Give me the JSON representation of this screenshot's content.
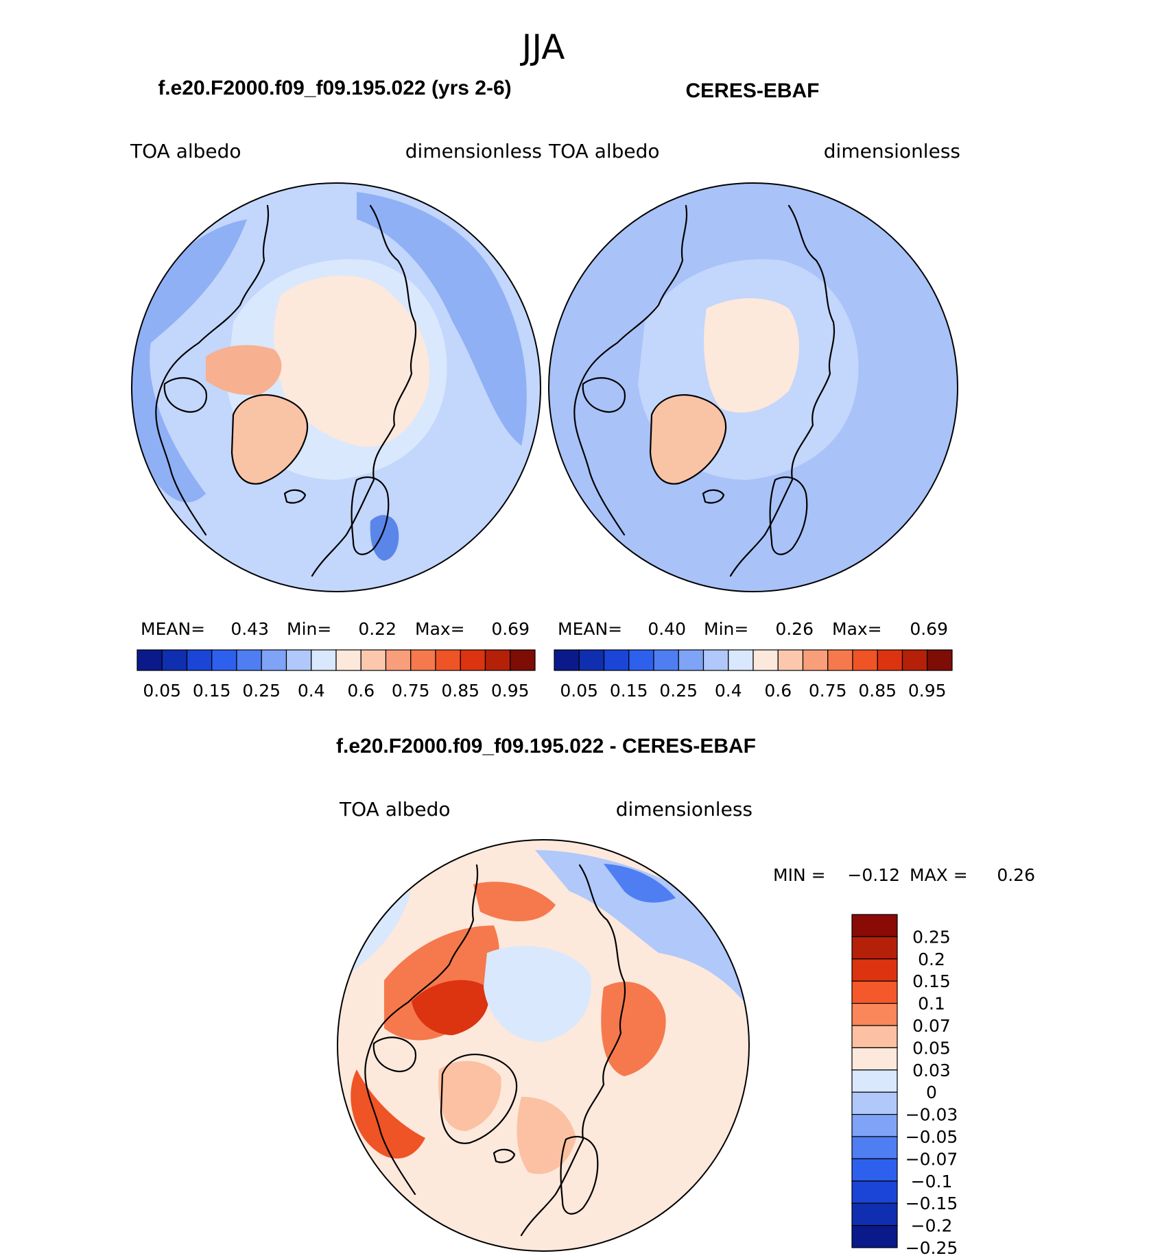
{
  "title": "JJA",
  "panels": [
    {
      "case_title": "f.e20.F2000.f09_f09.195.022 (yrs 2-6)",
      "left_label": "TOA  albedo",
      "right_label": "dimensionless",
      "stats": {
        "mean_label": "MEAN=",
        "mean": "0.43",
        "min_label": "Min=",
        "min": "0.22",
        "max_label": "Max=",
        "max": "0.69"
      },
      "base_color": "#c3d6fb",
      "field_colors": {
        "ocean_low": "#8fb0f5",
        "ice": "#fde8dc",
        "greenland": "#f9c3a6",
        "archipelago": "#f7b090",
        "baltic": "#5a86ea"
      }
    },
    {
      "case_title": "CERES-EBAF",
      "left_label": "TOA  albedo",
      "right_label": "dimensionless",
      "stats": {
        "mean_label": "MEAN=",
        "mean": "0.40",
        "min_label": "Min=",
        "min": "0.26",
        "max_label": "Max=",
        "max": "0.69"
      },
      "base_color": "#a9c2f8",
      "field_colors": {
        "ocean_low": "#8fb0f5",
        "ice": "#fde8dc",
        "greenland": "#f9c3a6",
        "archipelago": "#d9e8fc",
        "baltic": "#8fb0f5"
      }
    }
  ],
  "top_colorbar": {
    "colors": [
      "#0a1a8a",
      "#0f2fb0",
      "#1a45d6",
      "#2e60ee",
      "#4f7ef3",
      "#7fa3f6",
      "#b0c8fa",
      "#d9e8fc",
      "#fde8dc",
      "#fbc8ae",
      "#f99e7a",
      "#f5794c",
      "#ef5426",
      "#dc3311",
      "#b52009",
      "#7d0d05"
    ],
    "tick_labels": [
      "0.05",
      "0.15",
      "0.25",
      "0.4",
      "0.6",
      "0.75",
      "0.85",
      "0.95"
    ]
  },
  "diff_panel": {
    "title": "f.e20.F2000.f09_f09.195.022 - CERES-EBAF",
    "left_label": "TOA  albedo",
    "right_label": "dimensionless",
    "min_label": "MIN =",
    "min": "−0.12",
    "max_label": "MAX =",
    "max": "0.26",
    "colorbar": {
      "colors": [
        "#8a0a05",
        "#b52009",
        "#dc3311",
        "#f5582a",
        "#f9875a",
        "#fbc1a2",
        "#fde8dc",
        "#d9e8fc",
        "#b0c8fa",
        "#7fa3f6",
        "#4f7ef3",
        "#2e60ee",
        "#1a45d6",
        "#0f2fb0",
        "#0a1a8a"
      ],
      "labels": [
        "0.25",
        "0.2",
        "0.15",
        "0.1",
        "0.07",
        "0.05",
        "0.03",
        "0",
        "−0.03",
        "−0.05",
        "−0.07",
        "−0.1",
        "−0.15",
        "−0.2",
        "−0.25"
      ]
    },
    "field_colors": {
      "base": "#fde8dc",
      "warm1": "#fbc1a2",
      "warm2": "#f5794c",
      "warm3": "#ef5426",
      "warm4": "#dc3311",
      "cool1": "#d9e8fc",
      "cool2": "#b0c8fa",
      "cool3": "#4f7ef3"
    }
  }
}
